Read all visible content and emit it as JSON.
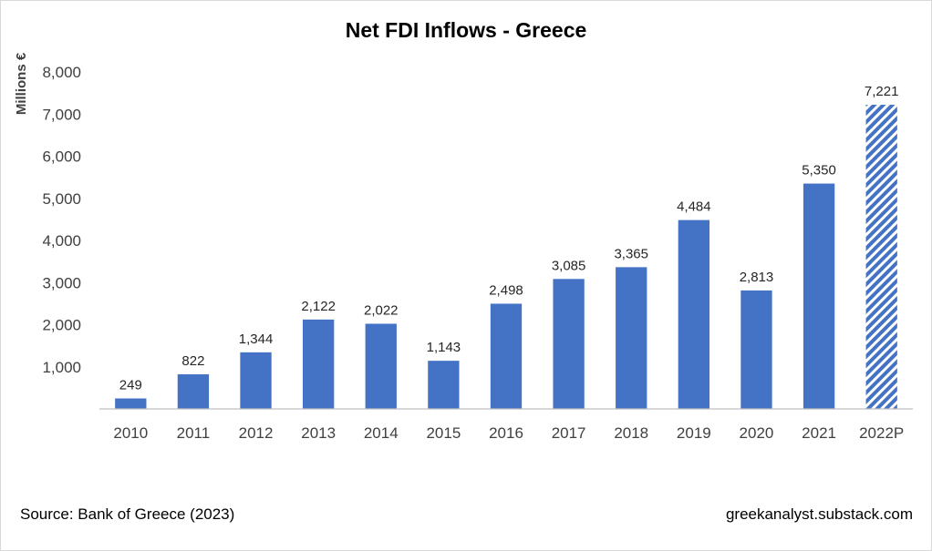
{
  "chart_data": {
    "type": "bar",
    "title": "Net FDI Inflows - Greece",
    "ylabel": "Millions €",
    "xlabel": "",
    "categories": [
      "2010",
      "2011",
      "2012",
      "2013",
      "2014",
      "2015",
      "2016",
      "2017",
      "2018",
      "2019",
      "2020",
      "2021",
      "2022P"
    ],
    "values": [
      249,
      822,
      1344,
      2122,
      2022,
      1143,
      2498,
      3085,
      3365,
      4484,
      2813,
      5350,
      7221
    ],
    "data_labels": [
      "249",
      "822",
      "1,344",
      "2,122",
      "2,022",
      "1,143",
      "2,498",
      "3,085",
      "3,365",
      "4,484",
      "2,813",
      "5,350",
      "7,221"
    ],
    "ylim": [
      0,
      8000
    ],
    "yticks": [
      1000,
      2000,
      3000,
      4000,
      5000,
      6000,
      7000,
      8000
    ],
    "ytick_labels": [
      "1,000",
      "2,000",
      "3,000",
      "4,000",
      "5,000",
      "6,000",
      "7,000",
      "8,000"
    ],
    "grid": false,
    "legend": "none",
    "bar_color": "#4472C4",
    "hatched_category": "2022P"
  },
  "footer": {
    "source": "Source: Bank of Greece (2023)",
    "credit": "greekanalyst.substack.com"
  },
  "colors": {
    "bar": "#4472C4",
    "axis": "#bfbfbf",
    "text": "#404040"
  }
}
